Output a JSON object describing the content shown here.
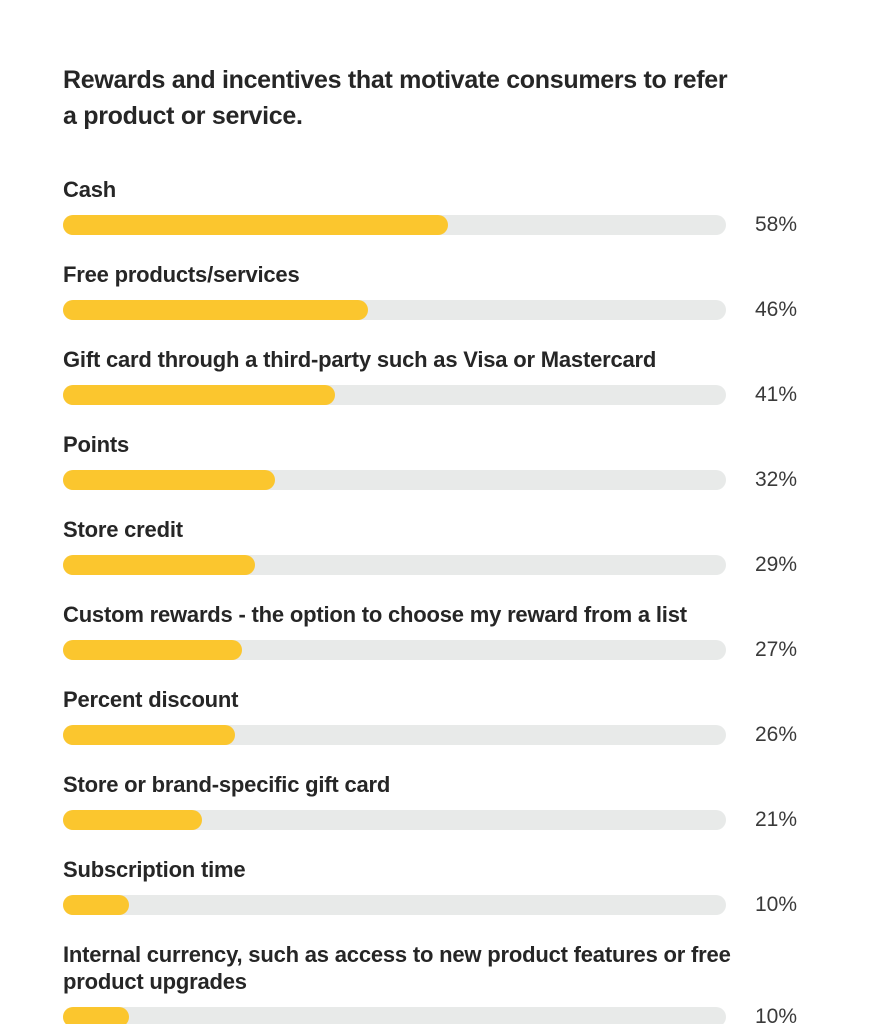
{
  "page": {
    "background": "#ffffff"
  },
  "header": {
    "title_lines": [
      "Rewards and incentives that motivate consumers to refer",
      "a product or service."
    ]
  },
  "chart_data": {
    "type": "bar",
    "orientation": "horizontal",
    "title": "Rewards and incentives that motivate consumers to refer a product or service.",
    "categories": [
      "Cash",
      "Free products/services",
      "Gift card through a third-party such as Visa or Mastercard",
      "Points",
      "Store credit",
      "Custom rewards - the option to choose my reward from a list",
      "Percent discount",
      "Store or brand-specific gift card",
      "Subscription time",
      "Internal currency, such as access to new product features or free product upgrades"
    ],
    "values": [
      58,
      46,
      41,
      32,
      29,
      27,
      26,
      21,
      10,
      10
    ],
    "value_labels": [
      "58%",
      "46%",
      "41%",
      "32%",
      "29%",
      "27%",
      "26%",
      "21%",
      "10%",
      "10%"
    ],
    "value_suffix": "%",
    "xlim": [
      0,
      100
    ],
    "grid": false,
    "legend": false,
    "value_label_position": "right-of-track",
    "bar_color": "#FBC62E",
    "track_color": "#E8EAE9",
    "label_color": "#262626",
    "value_color": "#3A3A3A"
  }
}
